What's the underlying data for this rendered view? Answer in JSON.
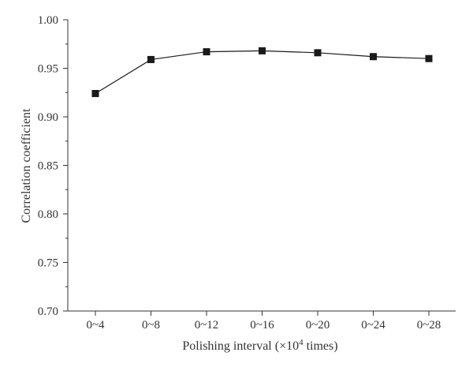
{
  "chart_data": {
    "type": "line",
    "title": "",
    "xlabel": "Polishing interval (×10",
    "xlabel_sup": "4",
    "xlabel_tail": " times)",
    "ylabel": "Correlation coefficient",
    "categories": [
      "0~4",
      "0~8",
      "0~12",
      "0~16",
      "0~20",
      "0~24",
      "0~28"
    ],
    "series": [
      {
        "values": [
          0.924,
          0.959,
          0.967,
          0.968,
          0.966,
          0.962,
          0.96
        ]
      }
    ],
    "ylim": [
      0.7,
      1.0
    ],
    "yticks": [
      "0.70",
      "0.75",
      "0.80",
      "0.85",
      "0.90",
      "0.95",
      "1.00"
    ],
    "grid": false,
    "marker": "square",
    "color": "#1a1a1a"
  }
}
